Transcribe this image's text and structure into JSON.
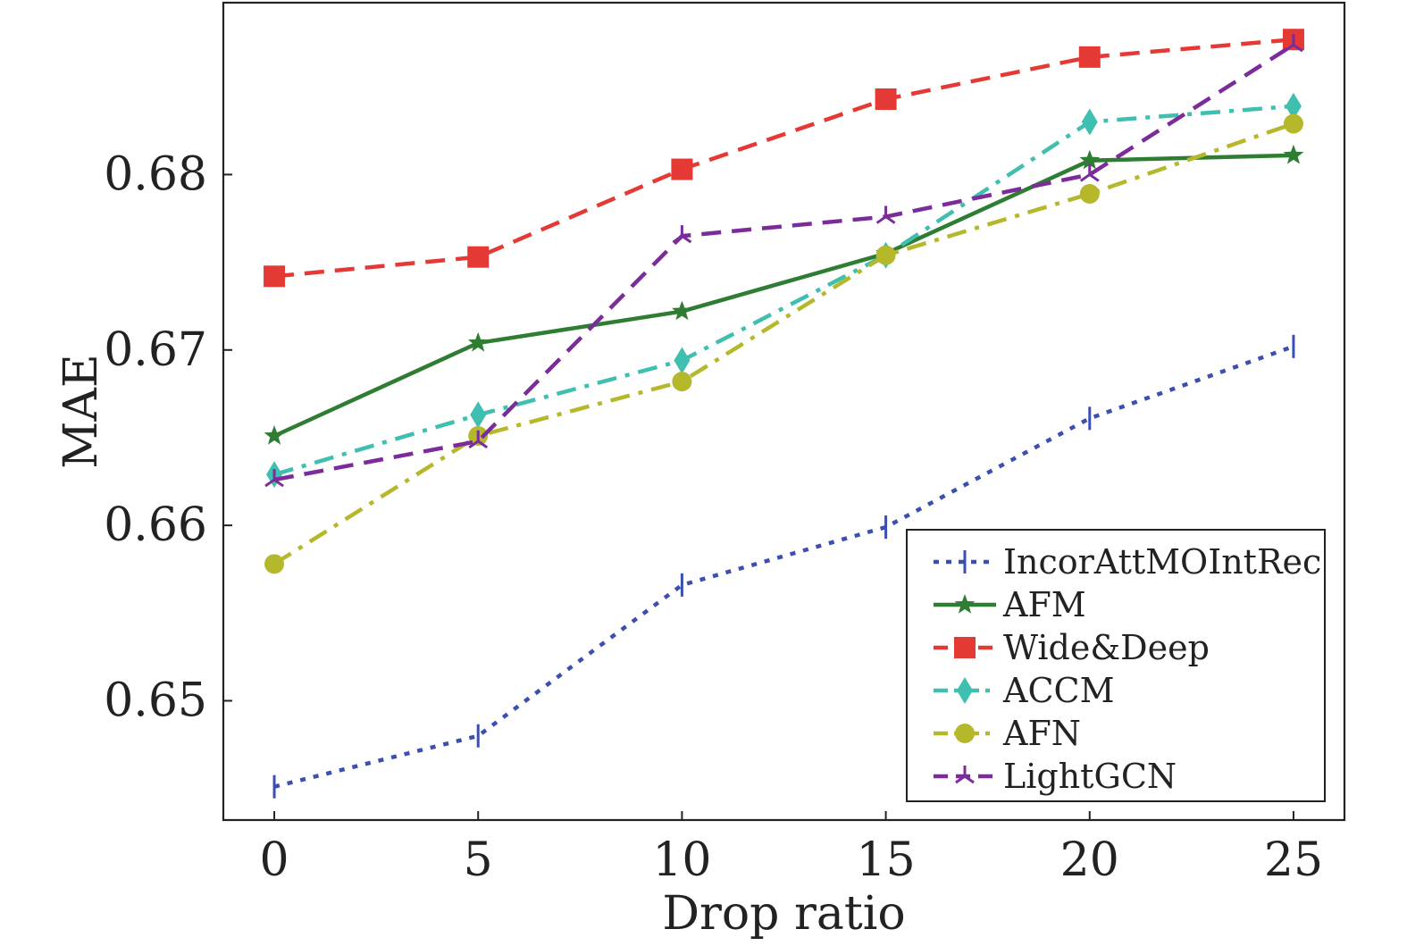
{
  "chart_data": {
    "type": "line",
    "xlabel": "Drop ratio",
    "ylabel": "MAE",
    "x": [
      0,
      5,
      10,
      15,
      20,
      25
    ],
    "xlim": [
      -1.25,
      26.25
    ],
    "ylim": [
      0.6432,
      0.6898
    ],
    "xticks": [
      "0",
      "5",
      "10",
      "15",
      "20",
      "25"
    ],
    "yticks": [
      "0.65",
      "0.66",
      "0.67",
      "0.68"
    ],
    "ytick_values": [
      0.65,
      0.66,
      0.67,
      0.68
    ],
    "grid": false,
    "legend_position": "bottom-right",
    "series": [
      {
        "name": "IncorAttMOIntRec",
        "color": "#3a4fb0",
        "dash": "dotted",
        "marker": "tick",
        "values": [
          0.6451,
          0.648,
          0.6566,
          0.6599,
          0.6661,
          0.6702
        ]
      },
      {
        "name": "AFM",
        "color": "#2e7d32",
        "dash": "solid",
        "marker": "star",
        "values": [
          0.6651,
          0.6704,
          0.6722,
          0.6755,
          0.6808,
          0.6811
        ]
      },
      {
        "name": "Wide&Deep",
        "color": "#e53935",
        "dash": "dashed",
        "marker": "square",
        "values": [
          0.6742,
          0.6753,
          0.6803,
          0.6843,
          0.6867,
          0.6877
        ]
      },
      {
        "name": "ACCM",
        "color": "#3fbfb0",
        "dash": "dashdot",
        "marker": "diamond",
        "values": [
          0.6629,
          0.6663,
          0.6694,
          0.6754,
          0.683,
          0.6839
        ]
      },
      {
        "name": "AFN",
        "color": "#b5b82a",
        "dash": "dashdot",
        "marker": "circle",
        "values": [
          0.6578,
          0.6651,
          0.6682,
          0.6754,
          0.6789,
          0.6829
        ]
      },
      {
        "name": "LightGCN",
        "color": "#7b2c9a",
        "dash": "dashed",
        "marker": "tri",
        "values": [
          0.6626,
          0.6648,
          0.6765,
          0.6776,
          0.68,
          0.6874
        ]
      }
    ]
  }
}
